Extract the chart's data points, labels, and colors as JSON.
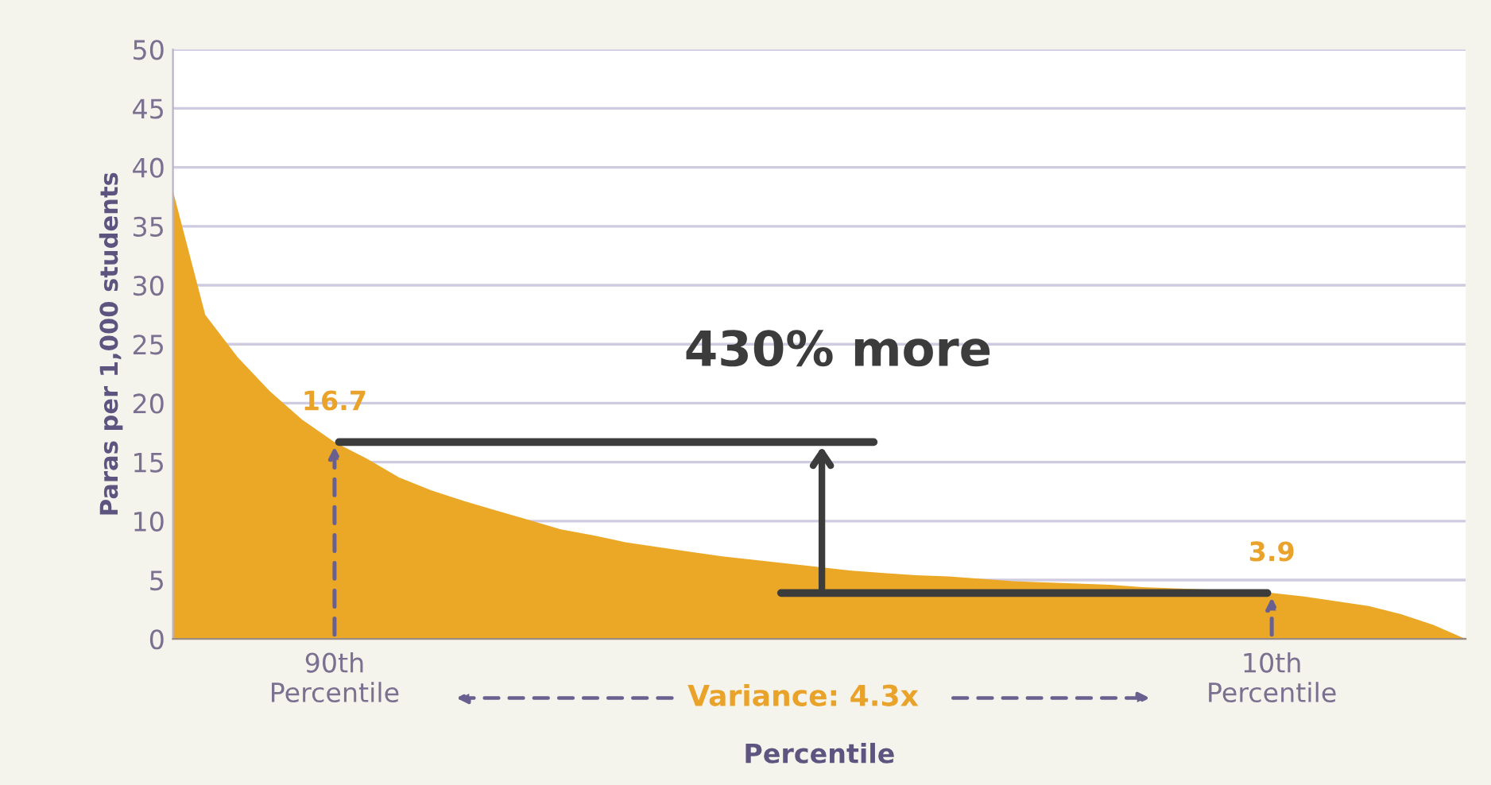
{
  "chart_data": {
    "type": "area",
    "xlabel": "Percentile",
    "ylabel": "Paras per 1,000 students",
    "categories": [
      null,
      null,
      null,
      null,
      null,
      "90th\nPercentile",
      null,
      null,
      null,
      null,
      null,
      null,
      null,
      null,
      null,
      null,
      null,
      null,
      null,
      null,
      null,
      null,
      null,
      null,
      null,
      null,
      null,
      null,
      null,
      null,
      null,
      null,
      null,
      null,
      "10th\nPercentile",
      null,
      null,
      null,
      null,
      null,
      null
    ],
    "series": [
      {
        "color": "#eba826",
        "values": [
          38,
          27.5,
          23.9,
          21,
          18.6,
          16.7,
          15.3,
          13.7,
          12.6,
          11.7,
          10.9,
          10.1,
          9.3,
          8.8,
          8.2,
          7.8,
          7.4,
          7.0,
          6.7,
          6.4,
          6.1,
          5.8,
          5.6,
          5.4,
          5.3,
          5.1,
          4.9,
          4.8,
          4.7,
          4.6,
          4.4,
          4.3,
          4.2,
          4.1,
          3.9,
          3.6,
          3.2,
          2.8,
          2.1,
          1.2,
          0
        ]
      }
    ],
    "ylim": [
      0,
      50
    ],
    "yticks": [
      0,
      5,
      10,
      15,
      20,
      25,
      30,
      35,
      40,
      45,
      50
    ],
    "grid": "y",
    "annotations": [
      {
        "text": "16.7",
        "x": "90th\nPercentile",
        "y": 16.7
      },
      {
        "text": "3.9",
        "x": "10th\nPercentile",
        "y": 3.9
      },
      "430% more",
      "Variance: 4.3x"
    ]
  }
}
